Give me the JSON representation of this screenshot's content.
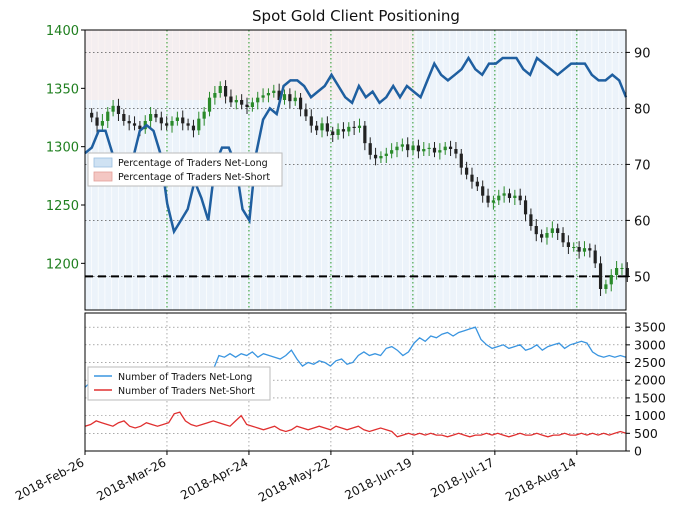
{
  "chart_data": [
    {
      "type": "candlestick+line",
      "title": "Spot Gold Client Positioning",
      "x_ticks": [
        "2018-Feb-26",
        "2018-Mar-26",
        "2018-Apr-24",
        "2018-May-22",
        "2018-Jun-19",
        "2018-Jul-17",
        "2018-Aug-14"
      ],
      "left_axis": {
        "ylim": [
          1160,
          1400
        ],
        "ticks": [
          1200,
          1250,
          1300,
          1350,
          1400
        ],
        "color": "#1f7f1f"
      },
      "right_axis": {
        "ylim": [
          44,
          94
        ],
        "ticks": [
          50,
          60,
          70,
          80,
          90
        ]
      },
      "reference_line": 50,
      "legend": {
        "placement": "left",
        "entries": [
          "Percentage of Traders Net-Long",
          "Percentage of Traders Net-Short"
        ]
      },
      "series": [
        {
          "name": "Percentage of Traders Net-Long",
          "color": "#1f5fa0",
          "values": [
            72,
            73,
            76,
            76,
            72,
            68,
            70,
            71,
            76,
            77,
            76,
            72,
            63,
            58,
            60,
            62,
            67,
            64,
            60,
            70,
            73,
            73,
            70,
            62,
            60,
            72,
            78,
            80,
            79,
            84,
            85,
            85,
            84,
            82,
            83,
            84,
            86,
            84,
            82,
            81,
            84,
            82,
            83,
            81,
            82,
            84,
            82,
            84,
            83,
            82,
            85,
            88,
            86,
            85,
            86,
            87,
            89,
            87,
            86,
            88,
            88,
            89,
            89,
            89,
            87,
            86,
            89,
            88,
            87,
            86,
            87,
            88,
            88,
            88,
            86,
            85,
            85,
            86,
            85,
            82
          ]
        }
      ],
      "ohlc_closes": [
        1325,
        1318,
        1322,
        1330,
        1335,
        1328,
        1322,
        1320,
        1318,
        1315,
        1322,
        1328,
        1325,
        1320,
        1318,
        1322,
        1325,
        1320,
        1318,
        1314,
        1324,
        1330,
        1342,
        1346,
        1352,
        1343,
        1338,
        1340,
        1336,
        1334,
        1338,
        1342,
        1344,
        1346,
        1348,
        1340,
        1345,
        1339,
        1342,
        1332,
        1326,
        1318,
        1314,
        1320,
        1313,
        1310,
        1315,
        1313,
        1317,
        1316,
        1318,
        1303,
        1293,
        1290,
        1292,
        1294,
        1297,
        1300,
        1302,
        1297,
        1301,
        1296,
        1298,
        1299,
        1295,
        1297,
        1300,
        1298,
        1294,
        1282,
        1276,
        1270,
        1266,
        1258,
        1252,
        1254,
        1258,
        1260,
        1256,
        1258,
        1254,
        1242,
        1232,
        1225,
        1222,
        1226,
        1230,
        1226,
        1218,
        1214,
        1214,
        1210,
        1213,
        1211,
        1200,
        1178,
        1182,
        1190,
        1196,
        1196,
        1188
      ]
    },
    {
      "type": "line",
      "y_ticks": [
        0,
        500,
        1000,
        1500,
        2000,
        2500,
        3000,
        3500
      ],
      "ylim": [
        0,
        3900
      ],
      "legend": {
        "placement": "left",
        "entries": [
          "Number of Traders Net-Long",
          "Number of Traders Net-Short"
        ]
      },
      "series": [
        {
          "name": "Number of Traders Net-Long",
          "color": "#3a95e0",
          "values": [
            1800,
            1950,
            1900,
            1900,
            1950,
            2000,
            1950,
            1900,
            1700,
            1500,
            1650,
            1700,
            1750,
            1700,
            1800,
            1650,
            1750,
            1800,
            1900,
            2000,
            2000,
            2050,
            2200,
            2300,
            2700,
            2650,
            2750,
            2650,
            2750,
            2700,
            2800,
            2650,
            2750,
            2700,
            2650,
            2600,
            2700,
            2850,
            2600,
            2400,
            2500,
            2450,
            2550,
            2500,
            2400,
            2550,
            2600,
            2450,
            2500,
            2700,
            2800,
            2700,
            2750,
            2700,
            2900,
            2950,
            2850,
            2700,
            2800,
            3050,
            3200,
            3100,
            3250,
            3200,
            3300,
            3350,
            3250,
            3350,
            3400,
            3450,
            3500,
            3150,
            3000,
            2900,
            2950,
            3000,
            2900,
            2950,
            3000,
            2850,
            2900,
            3000,
            2850,
            2950,
            3000,
            3050,
            2900,
            3000,
            3050,
            3100,
            3050,
            2800,
            2700,
            2650,
            2700,
            2650,
            2700,
            2650
          ]
        },
        {
          "name": "Number of Traders Net-Short",
          "color": "#e03030",
          "values": [
            700,
            750,
            850,
            800,
            750,
            700,
            800,
            850,
            700,
            650,
            700,
            800,
            750,
            700,
            750,
            800,
            1050,
            1100,
            850,
            750,
            700,
            750,
            800,
            850,
            800,
            750,
            700,
            850,
            1000,
            750,
            700,
            650,
            600,
            650,
            700,
            600,
            550,
            600,
            700,
            650,
            600,
            650,
            700,
            650,
            600,
            700,
            650,
            600,
            650,
            700,
            600,
            550,
            600,
            650,
            600,
            550,
            400,
            450,
            500,
            450,
            500,
            450,
            500,
            450,
            450,
            400,
            450,
            500,
            450,
            400,
            450,
            450,
            500,
            450,
            500,
            450,
            400,
            450,
            500,
            450,
            450,
            500,
            450,
            400,
            450,
            450,
            500,
            450,
            450,
            500,
            450,
            500,
            450,
            500,
            450,
            500,
            550,
            500
          ]
        }
      ]
    }
  ]
}
